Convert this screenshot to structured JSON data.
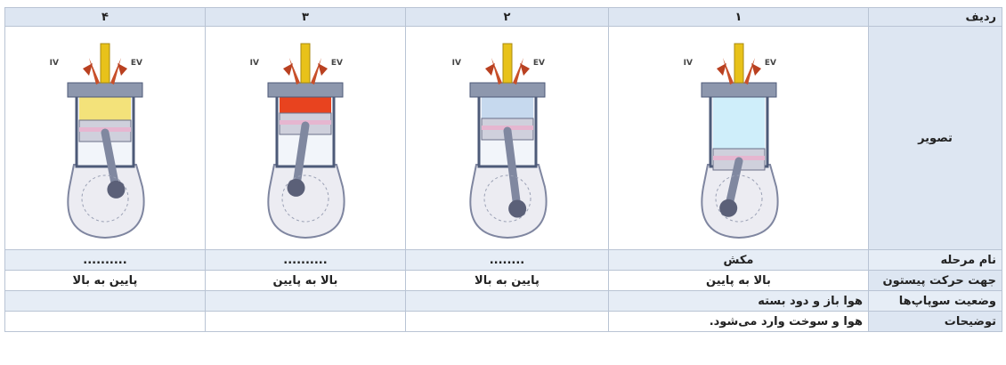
{
  "table": {
    "header": [
      "ردیف",
      "۱",
      "۲",
      "۳",
      "۴"
    ],
    "image_row_label": "تصویر",
    "images": [
      {
        "intake": "IV",
        "exhaust": "EV"
      },
      {
        "intake": "IV",
        "exhaust": "EV"
      },
      {
        "intake": "IV",
        "exhaust": "EV"
      },
      {
        "intake": "IV",
        "exhaust": "EV"
      }
    ],
    "rows": [
      [
        "نام مرحله",
        "مکش",
        "........",
        "..........",
        ".........."
      ],
      [
        "جهت حرکت پیستون",
        "بالا به پایین",
        "پایین به بالا",
        "بالا به پایین",
        "پایین به بالا"
      ],
      [
        "وضعیت سوپاپ‌ها",
        "هوا باز و دود بسته"
      ],
      [
        "توضیحات",
        "هوا و سوخت وارد می‌شود."
      ]
    ]
  }
}
